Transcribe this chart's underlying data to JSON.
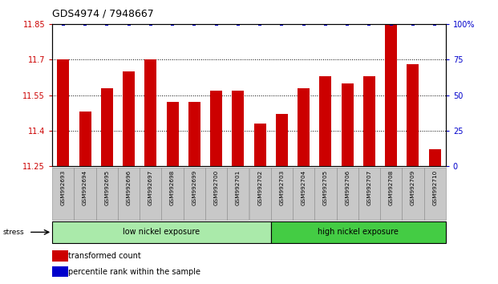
{
  "title": "GDS4974 / 7948667",
  "samples": [
    "GSM992693",
    "GSM992694",
    "GSM992695",
    "GSM992696",
    "GSM992697",
    "GSM992698",
    "GSM992699",
    "GSM992700",
    "GSM992701",
    "GSM992702",
    "GSM992703",
    "GSM992704",
    "GSM992705",
    "GSM992706",
    "GSM992707",
    "GSM992708",
    "GSM992709",
    "GSM992710"
  ],
  "bar_values": [
    11.7,
    11.48,
    11.58,
    11.65,
    11.7,
    11.52,
    11.52,
    11.57,
    11.57,
    11.43,
    11.47,
    11.58,
    11.63,
    11.6,
    11.63,
    11.85,
    11.68,
    11.32
  ],
  "percentile_values": [
    100,
    100,
    100,
    100,
    100,
    100,
    100,
    100,
    100,
    100,
    100,
    100,
    100,
    100,
    100,
    100,
    100,
    100
  ],
  "ylim_left": [
    11.25,
    11.85
  ],
  "ylim_right": [
    0,
    100
  ],
  "yticks_left": [
    11.25,
    11.4,
    11.55,
    11.7,
    11.85
  ],
  "yticks_right": [
    0,
    25,
    50,
    75,
    100
  ],
  "bar_color": "#cc0000",
  "percentile_color": "#0000cc",
  "label_color_left": "#cc0000",
  "label_color_right": "#0000cc",
  "tick_bg_color": "#c8c8c8",
  "group1_label": "low nickel exposure",
  "group2_label": "high nickel exposure",
  "group1_color": "#aaeaaa",
  "group2_color": "#44cc44",
  "group1_count": 10,
  "group2_count": 8,
  "stress_label": "stress",
  "legend_bar_label": "transformed count",
  "legend_pct_label": "percentile rank within the sample",
  "title_fontsize": 9,
  "tick_fontsize": 7,
  "bar_width": 0.55
}
